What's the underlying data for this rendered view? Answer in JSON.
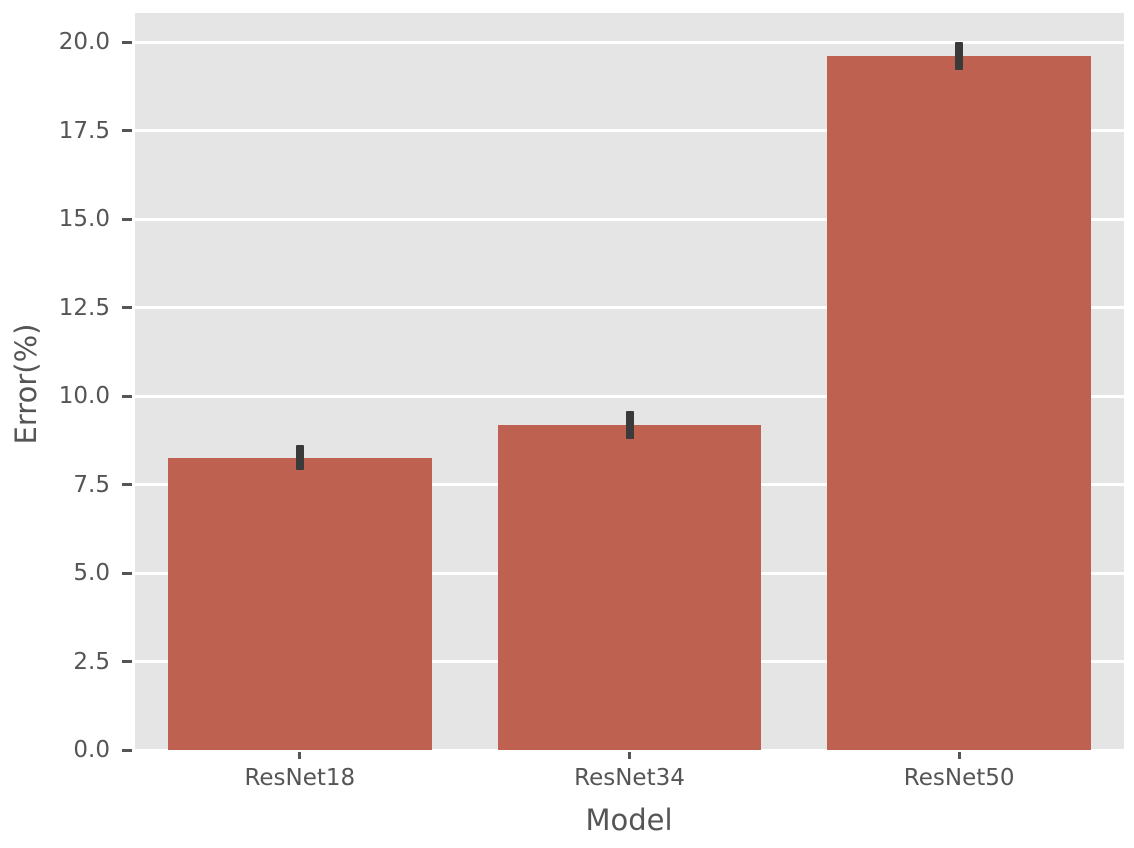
{
  "figure": {
    "background": "#ffffff"
  },
  "chart_data": {
    "type": "bar",
    "title": "",
    "xlabel": "Model",
    "ylabel": "Error(%)",
    "categories": [
      "ResNet18",
      "ResNet34",
      "ResNet50"
    ],
    "values": [
      8.26,
      9.18,
      19.6
    ],
    "errors": [
      0.36,
      0.4,
      0.4
    ],
    "yticks": [
      0,
      2.5,
      5,
      7.5,
      10,
      12.5,
      15,
      17.5,
      20
    ],
    "ytick_labels": [
      "0.0",
      "2.5",
      "5.0",
      "7.5",
      "10.0",
      "12.5",
      "15.0",
      "17.5",
      "20.0"
    ],
    "ylim": [
      0,
      20.82
    ],
    "bar_width_fraction": 0.8,
    "grid": "horizontal",
    "legend": "none",
    "colors": {
      "bar": "#be6150",
      "error_bar": "#3a3a3a",
      "plot_background": "#e5e5e5",
      "gridline": "#ffffff",
      "text": "#555555",
      "tick": "#555555"
    }
  }
}
